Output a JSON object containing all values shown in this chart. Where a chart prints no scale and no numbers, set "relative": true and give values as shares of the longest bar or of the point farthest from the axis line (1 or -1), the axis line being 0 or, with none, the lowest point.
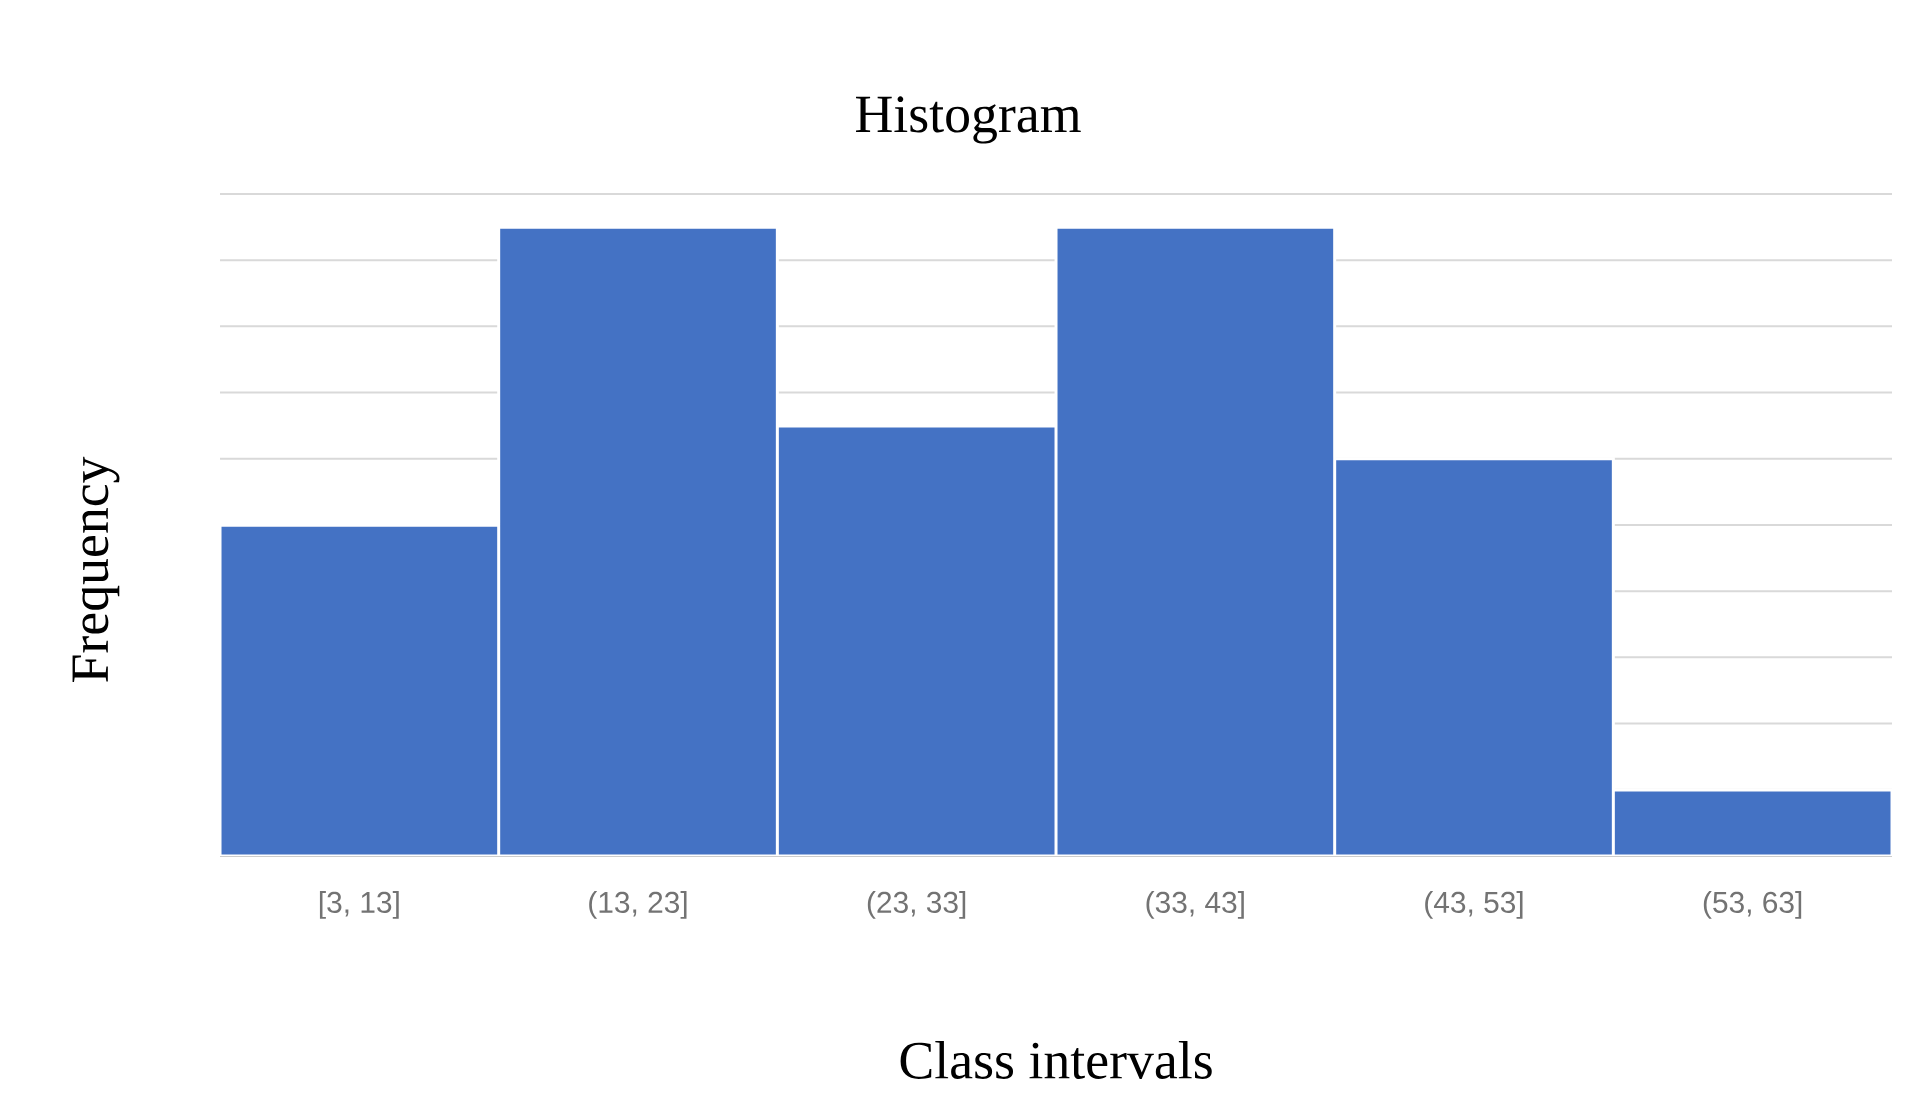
{
  "chart_data": {
    "type": "bar",
    "title": "Histogram",
    "xlabel": "Class intervals",
    "ylabel": "Frequency",
    "categories": [
      "[3, 13]",
      "(13, 23]",
      "(23, 33]",
      "(33, 43]",
      "(43, 53]",
      "(53, 63]"
    ],
    "values": [
      0.526,
      1,
      0.684,
      1,
      0.632,
      0.105
    ],
    "color": "#4472c4",
    "relative": true,
    "grid": "y"
  }
}
